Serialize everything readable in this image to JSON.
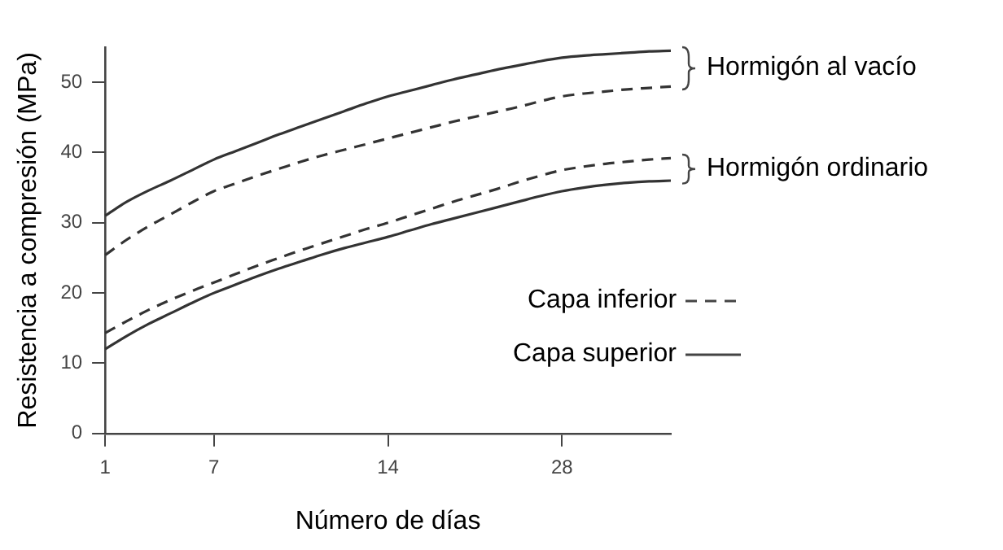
{
  "chart_data": {
    "type": "line",
    "xlabel": "Número de días",
    "ylabel": "Resistencia a compresión (MPa)",
    "categories": [
      "1",
      null,
      null,
      null,
      null,
      "7",
      null,
      null,
      null,
      null,
      null,
      null,
      null,
      "14",
      null,
      null,
      null,
      null,
      null,
      null,
      null,
      "28",
      null,
      null,
      null,
      null,
      null
    ],
    "ylim": [
      0,
      55
    ],
    "yticks": [
      0,
      10,
      20,
      30,
      40,
      50
    ],
    "grid": false,
    "legend": false,
    "marker": "none",
    "series": [
      {
        "color": "#333333",
        "line_style": "solid",
        "values": [
          31,
          33,
          34.6,
          36,
          37.5,
          39,
          40.2,
          41.4,
          42.6,
          43.7,
          44.8,
          45.9,
          47,
          48,
          48.8,
          49.6,
          50.4,
          51.1,
          51.8,
          52.4,
          53,
          53.5,
          53.8,
          54,
          54.2,
          54.4,
          54.5
        ]
      },
      {
        "color": "#333333",
        "line_style": "dashed",
        "values": [
          25.4,
          27.6,
          29.5,
          31.2,
          32.9,
          34.5,
          35.6,
          36.7,
          37.7,
          38.7,
          39.6,
          40.4,
          41.2,
          42,
          42.8,
          43.6,
          44.4,
          45.1,
          45.8,
          46.5,
          47.3,
          48,
          48.4,
          48.7,
          49,
          49.2,
          49.4
        ]
      },
      {
        "color": "#333333",
        "line_style": "dashed",
        "values": [
          14.3,
          16,
          17.6,
          19,
          20.3,
          21.5,
          22.7,
          23.9,
          25,
          26.1,
          27.1,
          28.1,
          29.1,
          30,
          31,
          32,
          33,
          33.9,
          34.8,
          35.8,
          36.7,
          37.5,
          38,
          38.4,
          38.7,
          39,
          39.2
        ]
      },
      {
        "color": "#333333",
        "line_style": "solid",
        "values": [
          12,
          13.9,
          15.6,
          17.1,
          18.6,
          20,
          21.2,
          22.4,
          23.5,
          24.5,
          25.5,
          26.4,
          27.2,
          28,
          28.9,
          29.8,
          30.6,
          31.4,
          32.2,
          33,
          33.8,
          34.5,
          35,
          35.4,
          35.7,
          35.9,
          36
        ]
      }
    ],
    "annotations": [
      "Hormigón al vacío",
      "Hormigón ordinario",
      "Capa inferior",
      "Capa superior"
    ]
  }
}
